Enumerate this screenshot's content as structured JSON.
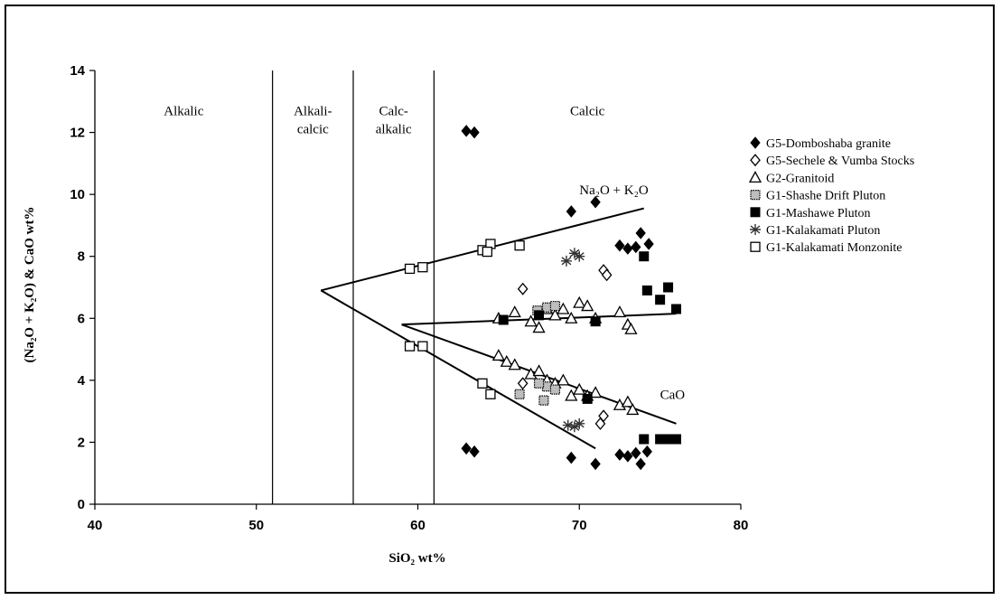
{
  "chart_data": {
    "type": "scatter",
    "title": "",
    "xlabel": "SiO₂ wt%",
    "ylabel": "(Na₂O + K₂O) & CaO wt%",
    "xlim": [
      40,
      80
    ],
    "ylim": [
      0,
      14
    ],
    "x_ticks": [
      "40",
      "50",
      "60",
      "70",
      "80"
    ],
    "y_ticks": [
      "0",
      "2",
      "4",
      "6",
      "8",
      "10",
      "12",
      "14"
    ],
    "grid": false,
    "legend_position": "right",
    "field_boundaries_x": [
      51,
      56,
      61
    ],
    "field_labels": [
      {
        "lines": [
          "Alkalic"
        ],
        "x": 45.5,
        "y": 12.7
      },
      {
        "lines": [
          "Alkali-",
          "calcic"
        ],
        "x": 53.5,
        "y": 12.7
      },
      {
        "lines": [
          "Calc-",
          "alkalic"
        ],
        "x": 58.5,
        "y": 12.7
      },
      {
        "lines": [
          "Calcic"
        ],
        "x": 70.5,
        "y": 12.7
      }
    ],
    "annotations": [
      {
        "text": "Na₂O + K₂O",
        "x": 70,
        "y": 10
      },
      {
        "text": "CaO",
        "x": 75,
        "y": 3.4
      }
    ],
    "trend_lines": [
      {
        "name": "Na2O+K2O main",
        "points": [
          [
            54,
            6.9
          ],
          [
            74,
            9.55
          ]
        ]
      },
      {
        "name": "Na2O+K2O upper",
        "points": [
          [
            54,
            6.9
          ],
          [
            71,
            1.8
          ]
        ]
      },
      {
        "name": "G2 alkali",
        "points": [
          [
            59,
            5.8
          ],
          [
            76,
            6.15
          ]
        ]
      },
      {
        "name": "G2 CaO",
        "points": [
          [
            59,
            5.8
          ],
          [
            76,
            2.6
          ]
        ]
      }
    ],
    "series": [
      {
        "name": "G5-Domboshaba granite",
        "marker": "diamond-filled",
        "points": [
          [
            63.0,
            12.05
          ],
          [
            63.5,
            12.0
          ],
          [
            69.5,
            9.45
          ],
          [
            71.0,
            9.75
          ],
          [
            72.5,
            8.35
          ],
          [
            73.0,
            8.25
          ],
          [
            73.5,
            8.3
          ],
          [
            73.8,
            8.75
          ],
          [
            74.3,
            8.4
          ],
          [
            63.0,
            1.8
          ],
          [
            63.5,
            1.7
          ],
          [
            69.5,
            1.5
          ],
          [
            71.0,
            1.3
          ],
          [
            72.5,
            1.6
          ],
          [
            73.0,
            1.55
          ],
          [
            73.5,
            1.65
          ],
          [
            73.8,
            1.3
          ],
          [
            74.2,
            1.7
          ]
        ]
      },
      {
        "name": "G5-Sechele & Vumba Stocks",
        "marker": "diamond-open",
        "points": [
          [
            66.5,
            6.95
          ],
          [
            71.5,
            7.55
          ],
          [
            71.7,
            7.4
          ],
          [
            66.5,
            3.9
          ],
          [
            71.5,
            2.85
          ],
          [
            71.3,
            2.6
          ]
        ]
      },
      {
        "name": "G2-Granitoid",
        "marker": "triangle-open",
        "points": [
          [
            65.0,
            6.0
          ],
          [
            66.0,
            6.2
          ],
          [
            67.0,
            5.9
          ],
          [
            67.5,
            5.7
          ],
          [
            68.0,
            6.3
          ],
          [
            68.5,
            6.1
          ],
          [
            69.0,
            6.3
          ],
          [
            69.5,
            6.0
          ],
          [
            70.0,
            6.5
          ],
          [
            70.5,
            6.4
          ],
          [
            71.0,
            6.0
          ],
          [
            72.5,
            6.2
          ],
          [
            73.0,
            5.8
          ],
          [
            73.2,
            5.65
          ],
          [
            65.0,
            4.8
          ],
          [
            65.5,
            4.6
          ],
          [
            66.0,
            4.5
          ],
          [
            67.0,
            4.2
          ],
          [
            67.5,
            4.3
          ],
          [
            68.0,
            4.0
          ],
          [
            68.5,
            3.9
          ],
          [
            69.0,
            4.0
          ],
          [
            69.5,
            3.5
          ],
          [
            70.0,
            3.7
          ],
          [
            70.5,
            3.5
          ],
          [
            71.0,
            3.6
          ],
          [
            72.5,
            3.2
          ],
          [
            73.0,
            3.3
          ],
          [
            73.3,
            3.05
          ]
        ]
      },
      {
        "name": "G1-Shashe Drift Pluton",
        "marker": "square-dotted",
        "points": [
          [
            66.3,
            3.55
          ],
          [
            67.4,
            6.25
          ],
          [
            68.0,
            6.35
          ],
          [
            68.5,
            6.4
          ],
          [
            67.8,
            3.35
          ],
          [
            68.0,
            3.8
          ],
          [
            68.5,
            3.7
          ],
          [
            67.5,
            3.9
          ]
        ]
      },
      {
        "name": "G1-Mashawe Pluton",
        "marker": "square-filled",
        "points": [
          [
            65.3,
            5.95
          ],
          [
            67.5,
            6.1
          ],
          [
            71.0,
            5.9
          ],
          [
            74.0,
            8.0
          ],
          [
            74.2,
            6.9
          ],
          [
            75.0,
            6.6
          ],
          [
            75.5,
            7.0
          ],
          [
            76.0,
            6.3
          ],
          [
            70.5,
            3.4
          ],
          [
            74.0,
            2.1
          ],
          [
            75.0,
            2.1
          ],
          [
            75.5,
            2.1
          ],
          [
            76.0,
            2.1
          ]
        ]
      },
      {
        "name": "G1-Kalakamati Pluton",
        "marker": "asterisk",
        "points": [
          [
            69.2,
            7.85
          ],
          [
            69.7,
            8.1
          ],
          [
            70.0,
            8.0
          ],
          [
            69.3,
            2.55
          ],
          [
            69.7,
            2.5
          ],
          [
            70.0,
            2.6
          ]
        ]
      },
      {
        "name": "G1-Kalakamati Monzonite",
        "marker": "square-open",
        "points": [
          [
            59.5,
            7.6
          ],
          [
            60.3,
            7.65
          ],
          [
            64.0,
            8.2
          ],
          [
            64.5,
            8.4
          ],
          [
            64.3,
            8.15
          ],
          [
            66.3,
            8.35
          ],
          [
            59.5,
            5.1
          ],
          [
            60.3,
            5.1
          ],
          [
            64.0,
            3.9
          ],
          [
            64.5,
            3.55
          ]
        ]
      }
    ]
  }
}
